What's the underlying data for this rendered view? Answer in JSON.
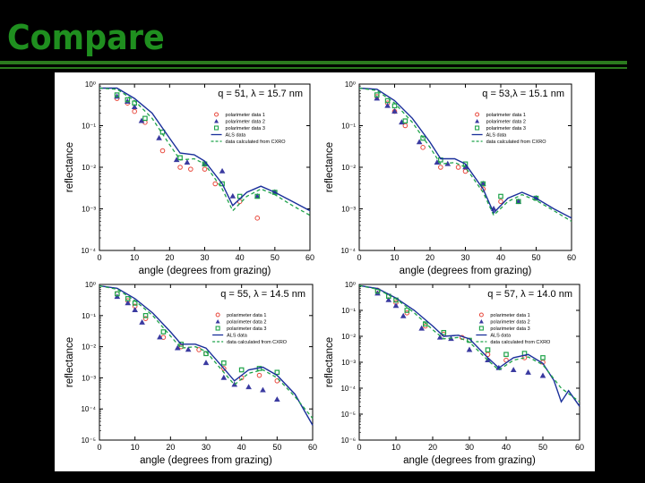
{
  "slide": {
    "title": "Compare",
    "accent_color": "#1f8f1f",
    "rule_color": "#2b7a1e"
  },
  "colors": {
    "series1": "#e8483c",
    "series2": "#3a3aa0",
    "series3": "#1fa34a",
    "als": "#1a2f9a",
    "cxro": "#1fa34a"
  },
  "chart_data": [
    {
      "type": "scatter",
      "title": "q = 51,  λ = 15.7 nm",
      "xlabel": "angle (degrees from grazing)",
      "ylabel": "reflectance",
      "xlim": [
        0,
        60
      ],
      "ylim_log10": [
        -4,
        0
      ],
      "yscale": "log",
      "xticks": [
        "0",
        "10",
        "20",
        "30",
        "40",
        "50",
        "60"
      ],
      "yticks": [
        "10⁰",
        "10⁻¹",
        "10⁻²",
        "10⁻³",
        "10⁻⁴"
      ],
      "legend_position": "right-middle",
      "series": [
        {
          "name": "polarimeter data 1",
          "style": "circle",
          "x": [
            5,
            8,
            10,
            13,
            18,
            23,
            26,
            30,
            33,
            40,
            45
          ],
          "y": [
            0.45,
            0.35,
            0.22,
            0.12,
            0.025,
            0.01,
            0.009,
            0.009,
            0.004,
            0.0015,
            0.0006
          ]
        },
        {
          "name": "polarimeter data 2",
          "style": "triangle",
          "x": [
            5,
            8,
            10,
            12,
            17,
            22,
            25,
            30,
            35,
            38,
            45,
            50
          ],
          "y": [
            0.5,
            0.38,
            0.28,
            0.13,
            0.05,
            0.015,
            0.013,
            0.012,
            0.008,
            0.002,
            0.002,
            0.0025
          ]
        },
        {
          "name": "polarimeter data 3",
          "style": "square",
          "x": [
            5,
            8,
            10,
            13,
            18,
            23,
            30,
            35,
            40,
            45,
            50
          ],
          "y": [
            0.55,
            0.42,
            0.35,
            0.15,
            0.07,
            0.017,
            0.012,
            0.004,
            0.002,
            0.002,
            0.0025
          ]
        },
        {
          "name": "ALS data",
          "style": "line",
          "x": [
            0,
            5,
            10,
            15,
            20,
            23,
            27,
            30,
            35,
            38,
            42,
            46,
            50,
            55,
            60
          ],
          "y": [
            0.8,
            0.8,
            0.45,
            0.2,
            0.05,
            0.022,
            0.02,
            0.014,
            0.004,
            0.0012,
            0.0025,
            0.0035,
            0.0025,
            0.0015,
            0.0009
          ]
        },
        {
          "name": "data calculated from CXRO",
          "style": "dashed",
          "x": [
            0,
            5,
            10,
            15,
            20,
            23,
            27,
            30,
            35,
            38,
            42,
            46,
            50,
            55,
            60
          ],
          "y": [
            0.8,
            0.75,
            0.4,
            0.15,
            0.035,
            0.015,
            0.016,
            0.012,
            0.003,
            0.0009,
            0.002,
            0.003,
            0.0022,
            0.0012,
            0.0007
          ]
        }
      ]
    },
    {
      "type": "scatter",
      "title": "q = 53,λ = 15.1 nm",
      "xlabel": "angle (degrees from grazing)",
      "ylabel": "reflectance",
      "xlim": [
        0,
        60
      ],
      "ylim_log10": [
        -4,
        0
      ],
      "yscale": "log",
      "xticks": [
        "0",
        "10",
        "20",
        "30",
        "40",
        "50",
        "60"
      ],
      "yticks": [
        "10⁰",
        "10⁻¹",
        "10⁻²",
        "10⁻³",
        "10⁻⁴"
      ],
      "legend_position": "right-middle",
      "series": [
        {
          "name": "polarimeter data 1",
          "style": "circle",
          "x": [
            5,
            8,
            10,
            13,
            18,
            23,
            28,
            30,
            35,
            40,
            45
          ],
          "y": [
            0.5,
            0.35,
            0.22,
            0.1,
            0.03,
            0.01,
            0.01,
            0.008,
            0.003,
            0.0015,
            0.0015
          ]
        },
        {
          "name": "polarimeter data 2",
          "style": "triangle",
          "x": [
            5,
            8,
            10,
            12,
            17,
            22,
            25,
            30,
            35,
            38,
            45,
            50
          ],
          "y": [
            0.45,
            0.3,
            0.22,
            0.12,
            0.04,
            0.013,
            0.012,
            0.01,
            0.004,
            0.001,
            0.0015,
            0.0018
          ]
        },
        {
          "name": "polarimeter data 3",
          "style": "square",
          "x": [
            5,
            8,
            10,
            13,
            18,
            23,
            30,
            35,
            40,
            45,
            50
          ],
          "y": [
            0.55,
            0.4,
            0.3,
            0.13,
            0.05,
            0.015,
            0.012,
            0.004,
            0.002,
            0.0015,
            0.0018
          ]
        },
        {
          "name": "ALS data",
          "style": "line",
          "x": [
            0,
            5,
            10,
            15,
            20,
            23,
            27,
            30,
            35,
            38,
            42,
            46,
            50,
            55,
            60
          ],
          "y": [
            0.8,
            0.75,
            0.4,
            0.15,
            0.04,
            0.016,
            0.016,
            0.012,
            0.003,
            0.0008,
            0.0018,
            0.0025,
            0.0018,
            0.001,
            0.0006
          ]
        },
        {
          "name": "data calculated from CXRO",
          "style": "dashed",
          "x": [
            0,
            5,
            10,
            15,
            20,
            23,
            27,
            30,
            35,
            38,
            42,
            46,
            50,
            55,
            60
          ],
          "y": [
            0.8,
            0.7,
            0.35,
            0.12,
            0.03,
            0.012,
            0.013,
            0.01,
            0.0025,
            0.0007,
            0.0015,
            0.0022,
            0.0016,
            0.0009,
            0.0005
          ]
        }
      ]
    },
    {
      "type": "scatter",
      "title": "q = 55,  λ = 14.5 nm",
      "xlabel": "angle (degrees from grazing)",
      "ylabel": "reflectance",
      "xlim": [
        0,
        60
      ],
      "ylim_log10": [
        -5,
        0
      ],
      "yscale": "log",
      "xticks": [
        "0",
        "10",
        "20",
        "30",
        "40",
        "50",
        "60"
      ],
      "yticks": [
        "10⁰",
        "10⁻¹",
        "10⁻²",
        "10⁻³",
        "10⁻⁴",
        "10⁻⁵"
      ],
      "legend_position": "right-middle",
      "series": [
        {
          "name": "polarimeter data 1",
          "style": "circle",
          "x": [
            5,
            8,
            10,
            13,
            18,
            23,
            28,
            30,
            35,
            40,
            45,
            50
          ],
          "y": [
            0.5,
            0.3,
            0.2,
            0.08,
            0.02,
            0.01,
            0.008,
            0.006,
            0.002,
            0.001,
            0.0012,
            0.0008
          ]
        },
        {
          "name": "polarimeter data 2",
          "style": "triangle",
          "x": [
            5,
            8,
            10,
            12,
            17,
            22,
            25,
            30,
            35,
            38,
            42,
            46,
            50
          ],
          "y": [
            0.4,
            0.25,
            0.15,
            0.06,
            0.02,
            0.009,
            0.008,
            0.003,
            0.001,
            0.0006,
            0.0005,
            0.0004,
            0.0002
          ]
        },
        {
          "name": "polarimeter data 3",
          "style": "square",
          "x": [
            5,
            8,
            10,
            13,
            18,
            23,
            30,
            35,
            40,
            45,
            50
          ],
          "y": [
            0.5,
            0.35,
            0.25,
            0.1,
            0.03,
            0.012,
            0.006,
            0.003,
            0.0018,
            0.002,
            0.0015
          ]
        },
        {
          "name": "ALS data",
          "style": "line",
          "x": [
            0,
            5,
            10,
            15,
            20,
            23,
            27,
            30,
            35,
            38,
            42,
            46,
            50,
            55,
            60
          ],
          "y": [
            0.9,
            0.75,
            0.35,
            0.12,
            0.03,
            0.012,
            0.012,
            0.009,
            0.002,
            0.0008,
            0.0018,
            0.0022,
            0.0012,
            0.0003,
            3e-05
          ]
        },
        {
          "name": "data calculated from CXRO",
          "style": "dashed",
          "x": [
            0,
            5,
            10,
            15,
            20,
            23,
            27,
            30,
            35,
            38,
            42,
            46,
            50,
            55,
            60
          ],
          "y": [
            0.9,
            0.7,
            0.3,
            0.1,
            0.022,
            0.009,
            0.01,
            0.007,
            0.0015,
            0.0006,
            0.0014,
            0.0018,
            0.001,
            0.00025,
            5e-05
          ]
        }
      ]
    },
    {
      "type": "scatter",
      "title": "q = 57,  λ = 14.0 nm",
      "xlabel": "angle (degrees from grazing)",
      "ylabel": "reflectance",
      "xlim": [
        0,
        60
      ],
      "ylim_log10": [
        -6,
        0
      ],
      "yscale": "log",
      "xticks": [
        "0",
        "10",
        "20",
        "30",
        "40",
        "50",
        "60"
      ],
      "yticks": [
        "10⁰",
        "10⁻¹",
        "10⁻²",
        "10⁻³",
        "10⁻⁴",
        "10⁻⁵",
        "10⁻⁶"
      ],
      "legend_position": "right-middle",
      "series": [
        {
          "name": "polarimeter data 1",
          "style": "circle",
          "x": [
            5,
            8,
            10,
            13,
            18,
            23,
            28,
            30,
            35,
            40,
            45,
            50
          ],
          "y": [
            0.6,
            0.35,
            0.2,
            0.08,
            0.025,
            0.012,
            0.009,
            0.007,
            0.002,
            0.0012,
            0.0015,
            0.001
          ]
        },
        {
          "name": "polarimeter data 2",
          "style": "triangle",
          "x": [
            5,
            8,
            10,
            12,
            17,
            22,
            25,
            30,
            35,
            38,
            42,
            46,
            50
          ],
          "y": [
            0.45,
            0.25,
            0.15,
            0.06,
            0.02,
            0.009,
            0.008,
            0.003,
            0.0012,
            0.0006,
            0.0005,
            0.0004,
            0.0003
          ]
        },
        {
          "name": "polarimeter data 3",
          "style": "square",
          "x": [
            5,
            8,
            10,
            13,
            18,
            23,
            30,
            35,
            40,
            45,
            50
          ],
          "y": [
            0.55,
            0.35,
            0.25,
            0.1,
            0.03,
            0.014,
            0.007,
            0.003,
            0.002,
            0.0022,
            0.0015
          ]
        },
        {
          "name": "ALS data",
          "style": "line",
          "x": [
            0,
            5,
            10,
            15,
            20,
            23,
            27,
            30,
            35,
            38,
            42,
            46,
            50,
            53,
            55,
            57,
            60
          ],
          "y": [
            0.9,
            0.7,
            0.3,
            0.1,
            0.025,
            0.01,
            0.011,
            0.008,
            0.0015,
            0.0006,
            0.0015,
            0.002,
            0.0009,
            0.0002,
            3e-05,
            8e-05,
            2e-05
          ]
        },
        {
          "name": "data calculated from CXRO",
          "style": "dashed",
          "x": [
            0,
            5,
            10,
            15,
            20,
            23,
            27,
            30,
            35,
            38,
            42,
            46,
            50,
            55,
            60
          ],
          "y": [
            0.9,
            0.65,
            0.28,
            0.08,
            0.018,
            0.008,
            0.009,
            0.006,
            0.0012,
            0.0005,
            0.0012,
            0.0016,
            0.0008,
            0.0001,
            3e-05
          ]
        }
      ]
    }
  ]
}
